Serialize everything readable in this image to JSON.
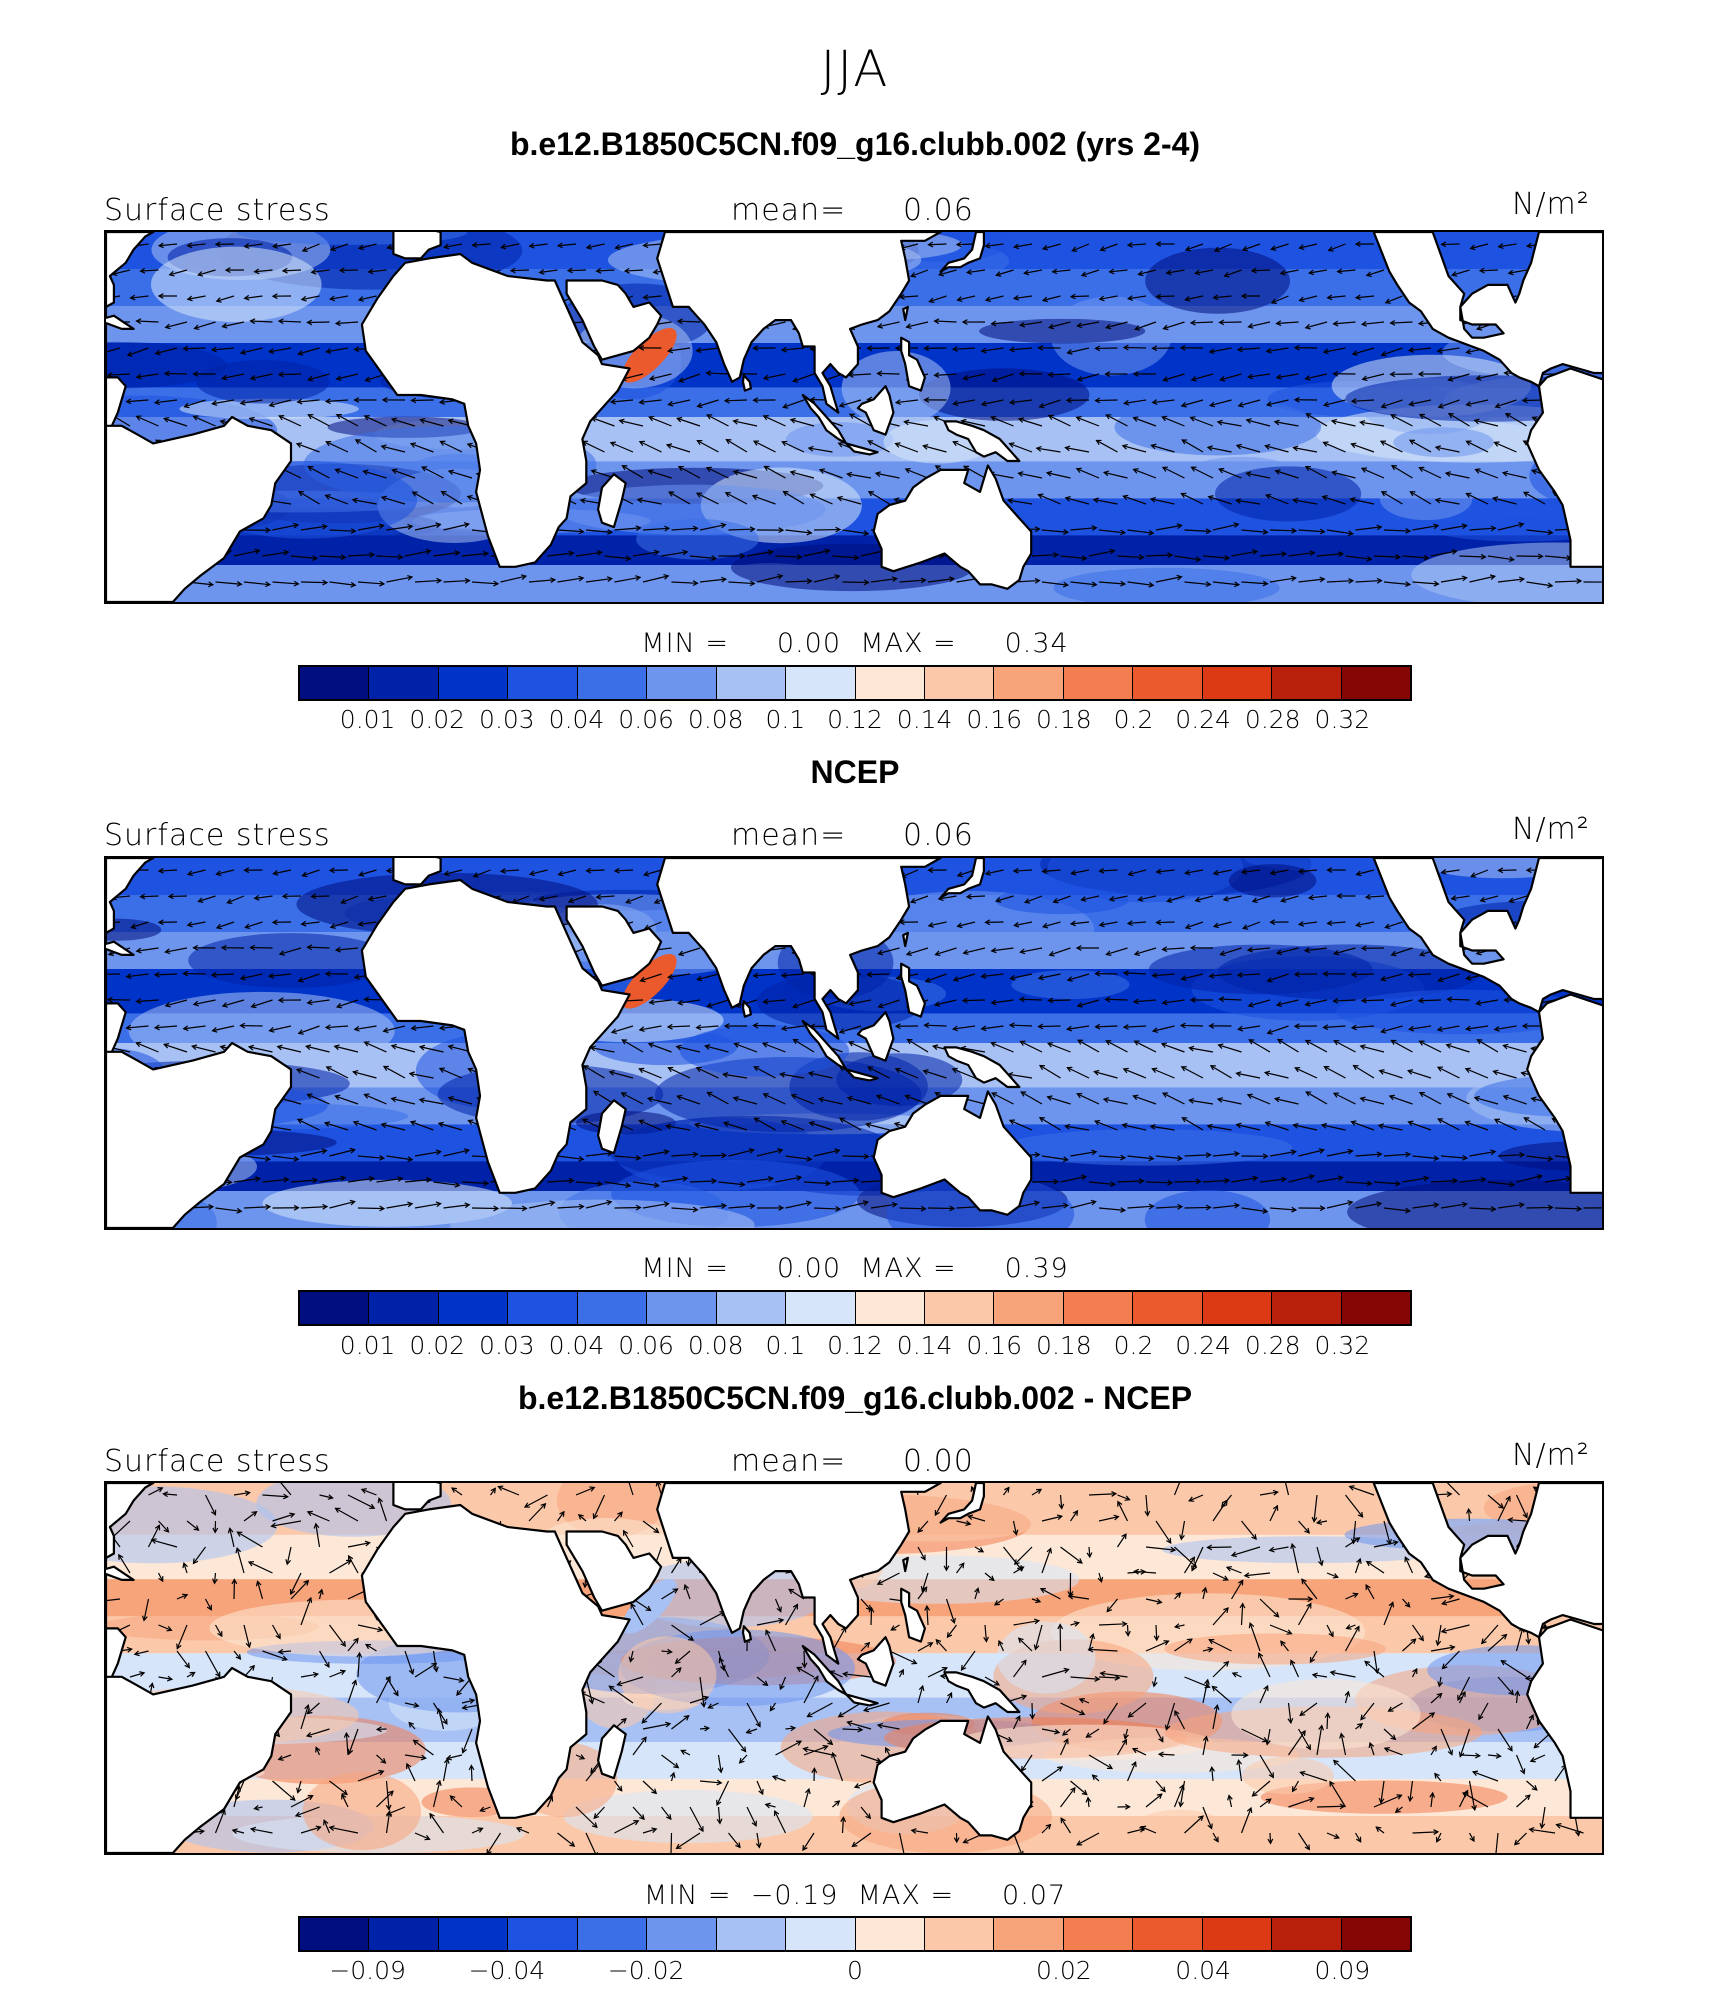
{
  "figure": {
    "season": "JJA"
  },
  "colorbar": {
    "colors": [
      "#000e80",
      "#0022a8",
      "#0033c8",
      "#1e52e0",
      "#3b6fe8",
      "#6e95ee",
      "#a8c1f4",
      "#d6e5fa",
      "#fde7d6",
      "#fbc9aa",
      "#f7a47b",
      "#f27e50",
      "#ea5a2c",
      "#db3a14",
      "#b8200c",
      "#860606"
    ]
  },
  "panels": [
    {
      "title": "b.e12.B1850C5CN.f09_g16.clubb.002 (yrs 2-4)",
      "variable": "Surface stress",
      "mean_label": "mean=",
      "mean_value": "0.06",
      "units": "N/m²",
      "min_label": "MIN =",
      "min_value": "0.00",
      "max_label": "MAX =",
      "max_value": "0.34",
      "tick_labels": [
        "0.01",
        "0.02",
        "0.03",
        "0.04",
        "0.06",
        "0.08",
        "0.1",
        "0.12",
        "0.14",
        "0.16",
        "0.18",
        "0.2",
        "0.24",
        "0.28",
        "0.32"
      ]
    },
    {
      "title": "NCEP",
      "variable": "Surface stress",
      "mean_label": "mean=",
      "mean_value": "0.06",
      "units": "N/m²",
      "min_label": "MIN =",
      "min_value": "0.00",
      "max_label": "MAX =",
      "max_value": "0.39",
      "tick_labels": [
        "0.01",
        "0.02",
        "0.03",
        "0.04",
        "0.06",
        "0.08",
        "0.1",
        "0.12",
        "0.14",
        "0.16",
        "0.18",
        "0.2",
        "0.24",
        "0.28",
        "0.32"
      ]
    },
    {
      "title": "b.e12.B1850C5CN.f09_g16.clubb.002 - NCEP",
      "variable": "Surface stress",
      "mean_label": "mean=",
      "mean_value": "0.00",
      "units": "N/m²",
      "min_label": "MIN =",
      "min_value": "−0.19",
      "max_label": "MAX =",
      "max_value": "0.07",
      "tick_labels": [
        "−0.09",
        "−0.04",
        "−0.02",
        "0",
        "0.02",
        "0.04",
        "0.09"
      ]
    }
  ]
}
